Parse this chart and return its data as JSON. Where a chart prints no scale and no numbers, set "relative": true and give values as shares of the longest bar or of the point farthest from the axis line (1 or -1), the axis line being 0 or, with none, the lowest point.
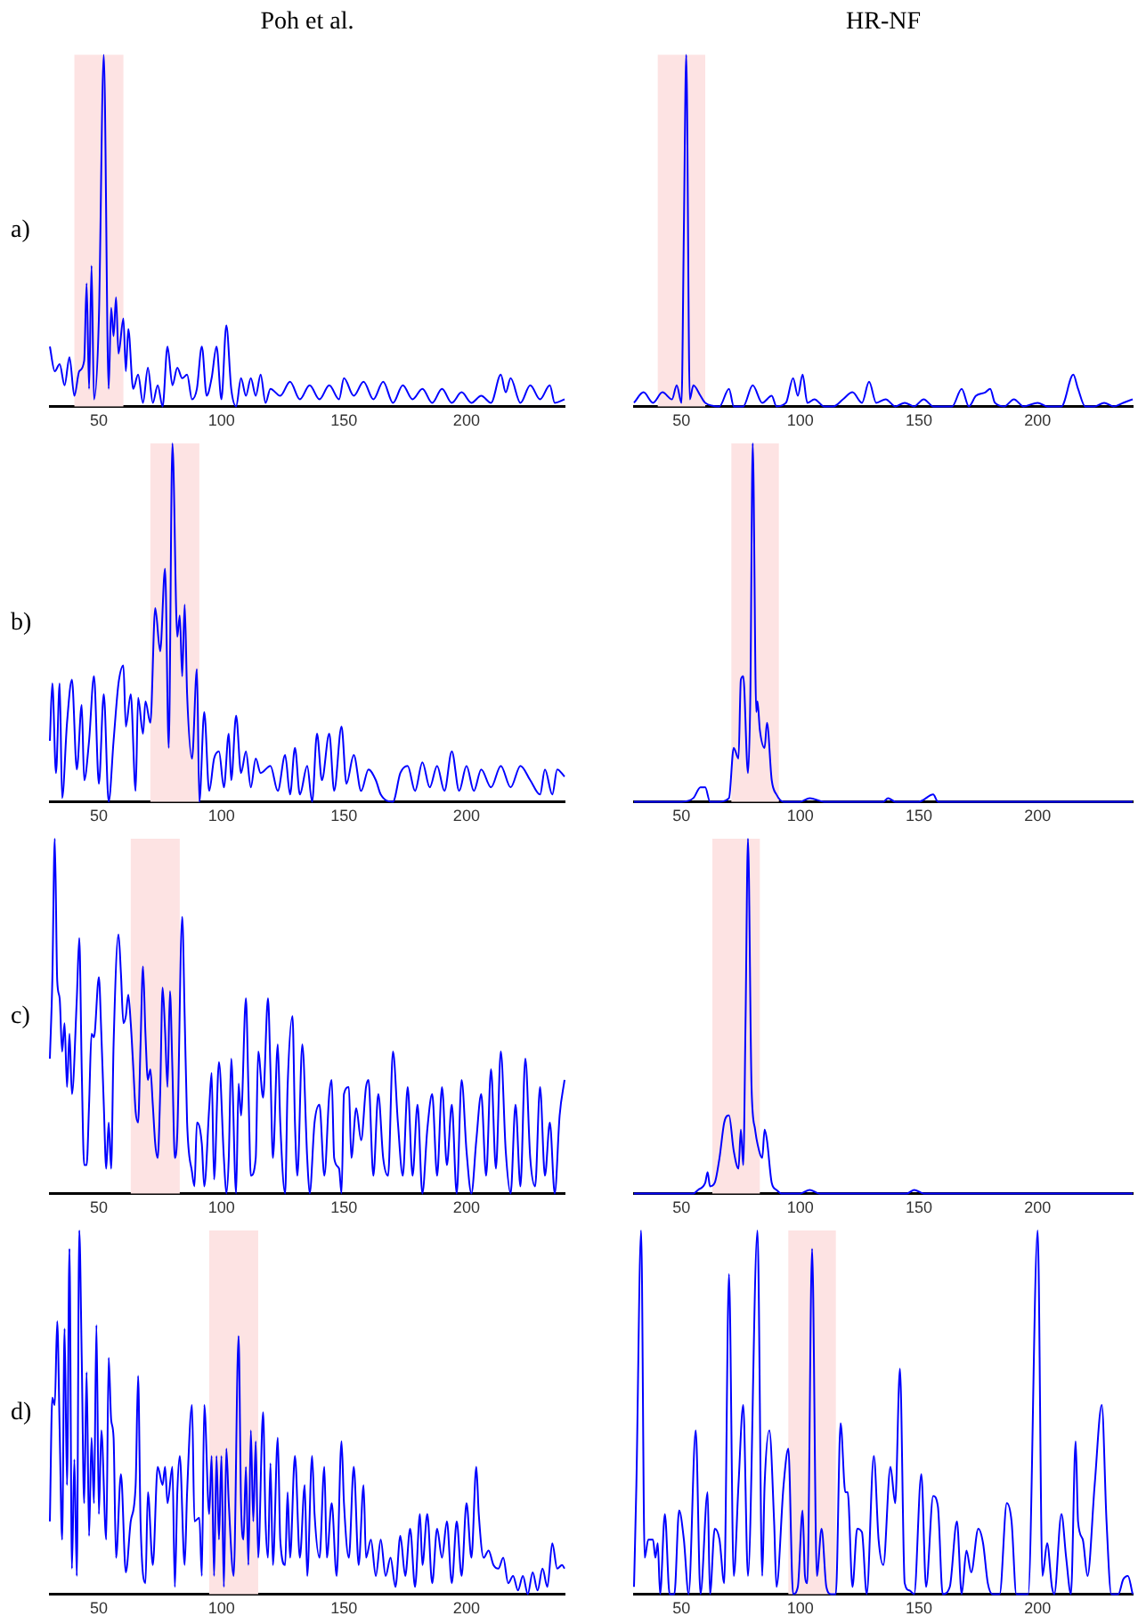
{
  "chart_data": [
    {
      "type": "line",
      "title": "Poh et al.",
      "ylabel": "a)",
      "relative": true,
      "tick_labels": "x",
      "color": "#0000ff",
      "xlim": [
        30,
        240
      ],
      "xticks": [
        50,
        100,
        150,
        200
      ],
      "bands": [
        {
          "axis": "x",
          "from": 40,
          "to": 60,
          "color": "#fde3e3"
        }
      ],
      "x": [
        30,
        32,
        34,
        36,
        38,
        40,
        42,
        44,
        45,
        46,
        47,
        48,
        50,
        52,
        54,
        55,
        56,
        57,
        58,
        60,
        61,
        62,
        64,
        66,
        68,
        70,
        72,
        74,
        76,
        78,
        80,
        82,
        84,
        86,
        88,
        90,
        92,
        94,
        96,
        98,
        100,
        102,
        104,
        106,
        108,
        110,
        112,
        114,
        116,
        118,
        120,
        124,
        128,
        132,
        136,
        140,
        144,
        148,
        150,
        154,
        158,
        162,
        166,
        170,
        174,
        178,
        182,
        186,
        190,
        194,
        198,
        202,
        206,
        210,
        214,
        216,
        218,
        222,
        226,
        230,
        234,
        236,
        240
      ],
      "values": [
        0.17,
        0.1,
        0.12,
        0.06,
        0.14,
        0.03,
        0.1,
        0.13,
        0.35,
        0.05,
        0.4,
        0.02,
        0.25,
        1.0,
        0.05,
        0.28,
        0.2,
        0.31,
        0.15,
        0.25,
        0.1,
        0.22,
        0.05,
        0.09,
        0.01,
        0.11,
        0.01,
        0.06,
        0.0,
        0.17,
        0.06,
        0.11,
        0.08,
        0.09,
        0.02,
        0.05,
        0.17,
        0.03,
        0.08,
        0.17,
        0.02,
        0.23,
        0.05,
        0.0,
        0.08,
        0.03,
        0.08,
        0.03,
        0.09,
        0.01,
        0.05,
        0.03,
        0.07,
        0.02,
        0.06,
        0.02,
        0.06,
        0.02,
        0.08,
        0.03,
        0.07,
        0.02,
        0.07,
        0.01,
        0.06,
        0.02,
        0.05,
        0.01,
        0.05,
        0.01,
        0.04,
        0.01,
        0.03,
        0.01,
        0.09,
        0.04,
        0.08,
        0.01,
        0.06,
        0.02,
        0.06,
        0.01,
        0.02
      ]
    },
    {
      "type": "line",
      "title": "HR-NF",
      "relative": true,
      "tick_labels": "x",
      "color": "#0000ff",
      "xlim": [
        30,
        240
      ],
      "xticks": [
        50,
        100,
        150,
        200
      ],
      "bands": [
        {
          "axis": "x",
          "from": 40,
          "to": 60,
          "color": "#fde3e3"
        }
      ],
      "x": [
        30,
        34,
        38,
        42,
        46,
        48,
        50,
        51,
        52,
        53.5,
        55,
        58,
        60,
        66,
        70,
        72,
        76,
        80,
        84,
        88,
        90,
        94,
        97,
        99,
        101,
        103,
        106,
        110,
        114,
        118,
        122,
        126,
        129,
        132,
        136,
        140,
        144,
        148,
        152,
        156,
        160,
        164,
        168,
        171,
        174,
        178,
        180,
        182,
        186,
        190,
        194,
        200,
        204,
        210,
        215,
        217,
        220,
        224,
        228,
        232,
        236,
        240
      ],
      "values": [
        0.01,
        0.04,
        0.01,
        0.04,
        0.02,
        0.06,
        0.01,
        0.5,
        1.0,
        0.02,
        0.06,
        0.03,
        0.01,
        0.0,
        0.05,
        0.0,
        0.0,
        0.06,
        0.01,
        0.03,
        0.0,
        0.01,
        0.08,
        0.03,
        0.09,
        0.01,
        0.02,
        0.0,
        0.0,
        0.02,
        0.04,
        0.01,
        0.07,
        0.01,
        0.02,
        0.0,
        0.01,
        0.0,
        0.02,
        0.0,
        0.0,
        0.0,
        0.05,
        0.0,
        0.03,
        0.04,
        0.05,
        0.01,
        0.0,
        0.02,
        0.0,
        0.01,
        0.0,
        0.0,
        0.09,
        0.05,
        0.0,
        0.0,
        0.01,
        0.0,
        0.01,
        0.02
      ]
    },
    {
      "type": "line",
      "ylabel": "b)",
      "relative": true,
      "tick_labels": "x",
      "color": "#0000ff",
      "xlim": [
        30,
        240
      ],
      "xticks": [
        50,
        100,
        150,
        200
      ],
      "bands": [
        {
          "axis": "x",
          "from": 71,
          "to": 91,
          "color": "#fde3e3"
        }
      ],
      "x": [
        30,
        31,
        32.5,
        34,
        35,
        37,
        39,
        41,
        43,
        44,
        46,
        48,
        50,
        52,
        54,
        56,
        58,
        60,
        61,
        63,
        65,
        66,
        68,
        69,
        71,
        73,
        75,
        77,
        78.5,
        80,
        82,
        83,
        84,
        85,
        86,
        88,
        90,
        91,
        93,
        95,
        97,
        99,
        101,
        103,
        104,
        106,
        108,
        110,
        112,
        114,
        116,
        120,
        123,
        126,
        128,
        130,
        132,
        135,
        137,
        139,
        141,
        144,
        146,
        149,
        151,
        154,
        157,
        160,
        163,
        165,
        170,
        173,
        176,
        179,
        182,
        185,
        188,
        191,
        194,
        197,
        200,
        203,
        206,
        210,
        214,
        218,
        222,
        226,
        230,
        232,
        235,
        237,
        240
      ],
      "values": [
        0.17,
        0.33,
        0.08,
        0.33,
        0.01,
        0.22,
        0.34,
        0.09,
        0.27,
        0.06,
        0.17,
        0.35,
        0.05,
        0.3,
        0.0,
        0.17,
        0.33,
        0.38,
        0.21,
        0.3,
        0.03,
        0.29,
        0.19,
        0.28,
        0.22,
        0.54,
        0.42,
        0.65,
        0.15,
        1.0,
        0.46,
        0.52,
        0.35,
        0.55,
        0.3,
        0.12,
        0.37,
        0.0,
        0.25,
        0.03,
        0.12,
        0.14,
        0.04,
        0.19,
        0.06,
        0.24,
        0.08,
        0.14,
        0.04,
        0.12,
        0.08,
        0.1,
        0.03,
        0.13,
        0.02,
        0.15,
        0.02,
        0.1,
        0.0,
        0.19,
        0.06,
        0.19,
        0.03,
        0.21,
        0.05,
        0.13,
        0.03,
        0.09,
        0.06,
        0.02,
        0.0,
        0.08,
        0.1,
        0.03,
        0.11,
        0.04,
        0.1,
        0.03,
        0.14,
        0.03,
        0.1,
        0.03,
        0.09,
        0.04,
        0.1,
        0.04,
        0.1,
        0.06,
        0.02,
        0.09,
        0.02,
        0.09,
        0.07
      ]
    },
    {
      "type": "line",
      "relative": true,
      "tick_labels": "x",
      "color": "#0000ff",
      "xlim": [
        30,
        240
      ],
      "xticks": [
        50,
        100,
        150,
        200
      ],
      "bands": [
        {
          "axis": "x",
          "from": 71,
          "to": 91,
          "color": "#fde3e3"
        }
      ],
      "x": [
        30,
        50,
        55,
        58,
        60,
        62,
        66,
        70,
        72,
        74,
        75,
        76,
        78,
        79,
        80,
        81.5,
        82,
        83,
        85,
        86,
        88,
        90,
        93,
        100,
        104,
        110,
        135,
        137,
        140,
        150,
        156,
        158,
        170,
        240
      ],
      "values": [
        0.0,
        0.0,
        0.01,
        0.04,
        0.04,
        0.0,
        0.0,
        0.01,
        0.15,
        0.12,
        0.34,
        0.35,
        0.08,
        0.3,
        1.0,
        0.25,
        0.28,
        0.2,
        0.15,
        0.22,
        0.06,
        0.02,
        0.0,
        0.0,
        0.01,
        0.0,
        0.0,
        0.01,
        0.0,
        0.0,
        0.02,
        0.0,
        0.0,
        0.0
      ]
    },
    {
      "type": "line",
      "ylabel": "c)",
      "relative": true,
      "tick_labels": "x",
      "color": "#0000ff",
      "xlim": [
        30,
        240
      ],
      "xticks": [
        50,
        100,
        150,
        200
      ],
      "bands": [
        {
          "axis": "x",
          "from": 63,
          "to": 83,
          "color": "#fde3e3"
        }
      ],
      "x": [
        30,
        31,
        32,
        33,
        34,
        35,
        36,
        37,
        38,
        39,
        41,
        42,
        43,
        44,
        45,
        46,
        47,
        48,
        50,
        51,
        52,
        53,
        54,
        55,
        56,
        58,
        59,
        60,
        61,
        62,
        63,
        64,
        65,
        66,
        67,
        68,
        69,
        70,
        71,
        72,
        73,
        74,
        75,
        76,
        77,
        78,
        79,
        80,
        81,
        82,
        84,
        85,
        86,
        88,
        89,
        90,
        92,
        93,
        95,
        96,
        97,
        99,
        101,
        102,
        103,
        104,
        106,
        107,
        108,
        110,
        111,
        112,
        114,
        115,
        117,
        119,
        120,
        121,
        123,
        124,
        126,
        127,
        129,
        130,
        131,
        133,
        135,
        136,
        138,
        140,
        142,
        144,
        145,
        146,
        148,
        149,
        150,
        152,
        153,
        155,
        157,
        159,
        160,
        162,
        164,
        166,
        168,
        170,
        172,
        174,
        176,
        178,
        180,
        182,
        184,
        186,
        188,
        190,
        192,
        194,
        196,
        198,
        200,
        202,
        204,
        206,
        208,
        210,
        212,
        214,
        216,
        218,
        220,
        222,
        224,
        226,
        228,
        230,
        232,
        234,
        236,
        238,
        240
      ],
      "values": [
        0.38,
        0.6,
        1.0,
        0.6,
        0.55,
        0.4,
        0.48,
        0.3,
        0.45,
        0.28,
        0.55,
        0.72,
        0.35,
        0.08,
        0.08,
        0.25,
        0.45,
        0.44,
        0.61,
        0.45,
        0.25,
        0.07,
        0.2,
        0.07,
        0.42,
        0.73,
        0.62,
        0.48,
        0.5,
        0.56,
        0.48,
        0.36,
        0.23,
        0.2,
        0.42,
        0.64,
        0.45,
        0.32,
        0.35,
        0.25,
        0.14,
        0.1,
        0.28,
        0.58,
        0.46,
        0.3,
        0.57,
        0.35,
        0.1,
        0.17,
        0.78,
        0.5,
        0.2,
        0.06,
        0.02,
        0.2,
        0.14,
        0.02,
        0.24,
        0.34,
        0.04,
        0.37,
        0.1,
        0.0,
        0.1,
        0.38,
        0.0,
        0.31,
        0.22,
        0.55,
        0.3,
        0.05,
        0.1,
        0.4,
        0.27,
        0.55,
        0.35,
        0.1,
        0.42,
        0.2,
        0.0,
        0.3,
        0.5,
        0.2,
        0.05,
        0.42,
        0.1,
        0.0,
        0.2,
        0.25,
        0.05,
        0.28,
        0.32,
        0.1,
        0.07,
        0.0,
        0.28,
        0.3,
        0.1,
        0.24,
        0.15,
        0.3,
        0.32,
        0.05,
        0.28,
        0.1,
        0.05,
        0.4,
        0.2,
        0.05,
        0.3,
        0.05,
        0.25,
        0.0,
        0.18,
        0.28,
        0.05,
        0.3,
        0.08,
        0.25,
        0.0,
        0.32,
        0.12,
        0.0,
        0.15,
        0.28,
        0.05,
        0.35,
        0.07,
        0.4,
        0.12,
        0.0,
        0.25,
        0.02,
        0.38,
        0.1,
        0.02,
        0.3,
        0.05,
        0.2,
        0.0,
        0.22,
        0.32
      ]
    },
    {
      "type": "line",
      "relative": true,
      "tick_labels": "x",
      "color": "#0000ff",
      "xlim": [
        30,
        240
      ],
      "xticks": [
        50,
        100,
        150,
        200
      ],
      "bands": [
        {
          "axis": "x",
          "from": 63,
          "to": 83,
          "color": "#fde3e3"
        }
      ],
      "x": [
        30,
        55,
        57,
        60,
        61,
        62,
        64,
        66,
        68,
        70,
        72,
        74,
        75,
        76,
        77,
        78,
        79.5,
        81,
        82,
        84,
        85,
        86,
        88,
        90,
        92,
        100,
        104,
        108,
        145,
        148,
        152,
        240
      ],
      "values": [
        0.0,
        0.0,
        0.01,
        0.03,
        0.06,
        0.02,
        0.03,
        0.1,
        0.2,
        0.22,
        0.12,
        0.07,
        0.18,
        0.08,
        0.5,
        1.0,
        0.3,
        0.18,
        0.14,
        0.1,
        0.18,
        0.15,
        0.03,
        0.01,
        0.0,
        0.0,
        0.01,
        0.0,
        0.0,
        0.01,
        0.0,
        0.0
      ]
    },
    {
      "type": "line",
      "ylabel": "d)",
      "relative": true,
      "tick_labels": "x",
      "color": "#0000ff",
      "xlim": [
        30,
        240
      ],
      "xticks": [
        50,
        100,
        150,
        200
      ],
      "bands": [
        {
          "axis": "x",
          "from": 95,
          "to": 115,
          "color": "#fde3e3"
        }
      ],
      "x": [
        30,
        31,
        32,
        33,
        34,
        35,
        36,
        37,
        38,
        39,
        40,
        41,
        42,
        43,
        44,
        45,
        46,
        47,
        48,
        49,
        50,
        51,
        53,
        54,
        55,
        56,
        57,
        59,
        61,
        63,
        65,
        66,
        67,
        69,
        70,
        72,
        74,
        76,
        77,
        78,
        80,
        81,
        82,
        83,
        85,
        86,
        88,
        89,
        91,
        92,
        93,
        95,
        96,
        97,
        98,
        99,
        100,
        101,
        102,
        103,
        105,
        107,
        108,
        109,
        110,
        111,
        112,
        113,
        114,
        115,
        117,
        118,
        119,
        120,
        121,
        123,
        124,
        126,
        127,
        128,
        130,
        132,
        134,
        135,
        137,
        138,
        140,
        142,
        143,
        145,
        147,
        149,
        150,
        152,
        154,
        156,
        158,
        159,
        161,
        163,
        165,
        167,
        169,
        171,
        173,
        175,
        177,
        179,
        181,
        182,
        184,
        186,
        188,
        190,
        192,
        194,
        196,
        198,
        200,
        202,
        204,
        205,
        207,
        209,
        211,
        213,
        215,
        217,
        219,
        221,
        223,
        225,
        227,
        229,
        231,
        233,
        235,
        237,
        239,
        240
      ],
      "values": [
        0.2,
        0.54,
        0.52,
        0.75,
        0.45,
        0.15,
        0.73,
        0.3,
        0.95,
        0.07,
        0.37,
        0.05,
        1.0,
        0.65,
        0.25,
        0.61,
        0.16,
        0.43,
        0.25,
        0.74,
        0.22,
        0.45,
        0.15,
        0.65,
        0.48,
        0.43,
        0.1,
        0.33,
        0.06,
        0.2,
        0.3,
        0.6,
        0.2,
        0.03,
        0.28,
        0.08,
        0.35,
        0.3,
        0.35,
        0.25,
        0.35,
        0.02,
        0.28,
        0.38,
        0.08,
        0.28,
        0.52,
        0.2,
        0.21,
        0.05,
        0.52,
        0.22,
        0.38,
        0.05,
        0.38,
        0.15,
        0.38,
        0.02,
        0.4,
        0.25,
        0.05,
        0.71,
        0.25,
        0.15,
        0.35,
        0.08,
        0.45,
        0.2,
        0.42,
        0.1,
        0.5,
        0.2,
        0.1,
        0.36,
        0.08,
        0.43,
        0.15,
        0.08,
        0.28,
        0.1,
        0.38,
        0.1,
        0.3,
        0.05,
        0.38,
        0.22,
        0.1,
        0.35,
        0.1,
        0.25,
        0.05,
        0.42,
        0.25,
        0.1,
        0.35,
        0.08,
        0.3,
        0.1,
        0.15,
        0.05,
        0.15,
        0.05,
        0.1,
        0.02,
        0.16,
        0.05,
        0.18,
        0.02,
        0.22,
        0.08,
        0.22,
        0.03,
        0.18,
        0.1,
        0.2,
        0.03,
        0.2,
        0.05,
        0.25,
        0.1,
        0.35,
        0.22,
        0.1,
        0.12,
        0.08,
        0.07,
        0.1,
        0.03,
        0.05,
        0.01,
        0.05,
        0.0,
        0.06,
        0.01,
        0.07,
        0.02,
        0.14,
        0.07,
        0.08,
        0.07
      ]
    },
    {
      "type": "line",
      "relative": true,
      "tick_labels": "x",
      "color": "#0000ff",
      "xlim": [
        30,
        240
      ],
      "xticks": [
        50,
        100,
        150,
        200
      ],
      "bands": [
        {
          "axis": "x",
          "from": 95,
          "to": 115,
          "color": "#fde3e3"
        }
      ],
      "x": [
        30,
        31,
        33,
        34.5,
        36,
        38,
        39,
        40,
        41,
        43,
        45,
        47,
        49,
        51,
        53,
        56,
        58,
        61,
        62,
        64,
        66,
        68,
        70,
        72,
        74,
        76,
        78,
        82,
        84,
        85,
        87,
        89,
        90,
        93,
        95,
        97,
        99,
        101,
        102,
        103,
        105,
        107,
        109,
        111,
        113,
        115,
        117,
        119,
        120,
        122,
        124,
        126,
        128,
        131,
        133,
        135,
        138,
        140,
        142,
        144,
        146,
        148,
        151,
        153,
        156,
        158,
        160,
        163,
        166,
        168,
        170,
        172,
        175,
        177,
        179,
        181,
        184,
        187,
        189,
        191,
        196,
        200,
        202,
        204,
        206,
        207,
        210,
        212,
        214,
        216,
        217,
        219,
        221,
        224,
        227,
        229,
        231,
        234,
        236,
        238,
        240
      ],
      "values": [
        0.02,
        0.3,
        1.0,
        0.1,
        0.15,
        0.15,
        0.1,
        0.14,
        0.0,
        0.22,
        0.0,
        0.0,
        0.23,
        0.15,
        0.0,
        0.45,
        0.0,
        0.28,
        0.0,
        0.18,
        0.15,
        0.03,
        0.88,
        0.05,
        0.3,
        0.52,
        0.05,
        1.0,
        0.05,
        0.3,
        0.45,
        0.2,
        0.02,
        0.3,
        0.4,
        0.0,
        0.02,
        0.23,
        0.05,
        0.03,
        0.95,
        0.05,
        0.18,
        0.02,
        0.0,
        0.0,
        0.47,
        0.28,
        0.28,
        0.02,
        0.18,
        0.17,
        0.0,
        0.38,
        0.15,
        0.08,
        0.35,
        0.25,
        0.62,
        0.03,
        0.01,
        0.0,
        0.33,
        0.02,
        0.27,
        0.24,
        0.0,
        0.02,
        0.2,
        0.0,
        0.12,
        0.06,
        0.18,
        0.14,
        0.03,
        0.0,
        0.0,
        0.25,
        0.2,
        0.0,
        0.0,
        1.0,
        0.05,
        0.14,
        0.02,
        0.0,
        0.22,
        0.1,
        0.0,
        0.42,
        0.2,
        0.15,
        0.05,
        0.3,
        0.52,
        0.2,
        0.0,
        0.0,
        0.04,
        0.05,
        0.0
      ]
    }
  ]
}
